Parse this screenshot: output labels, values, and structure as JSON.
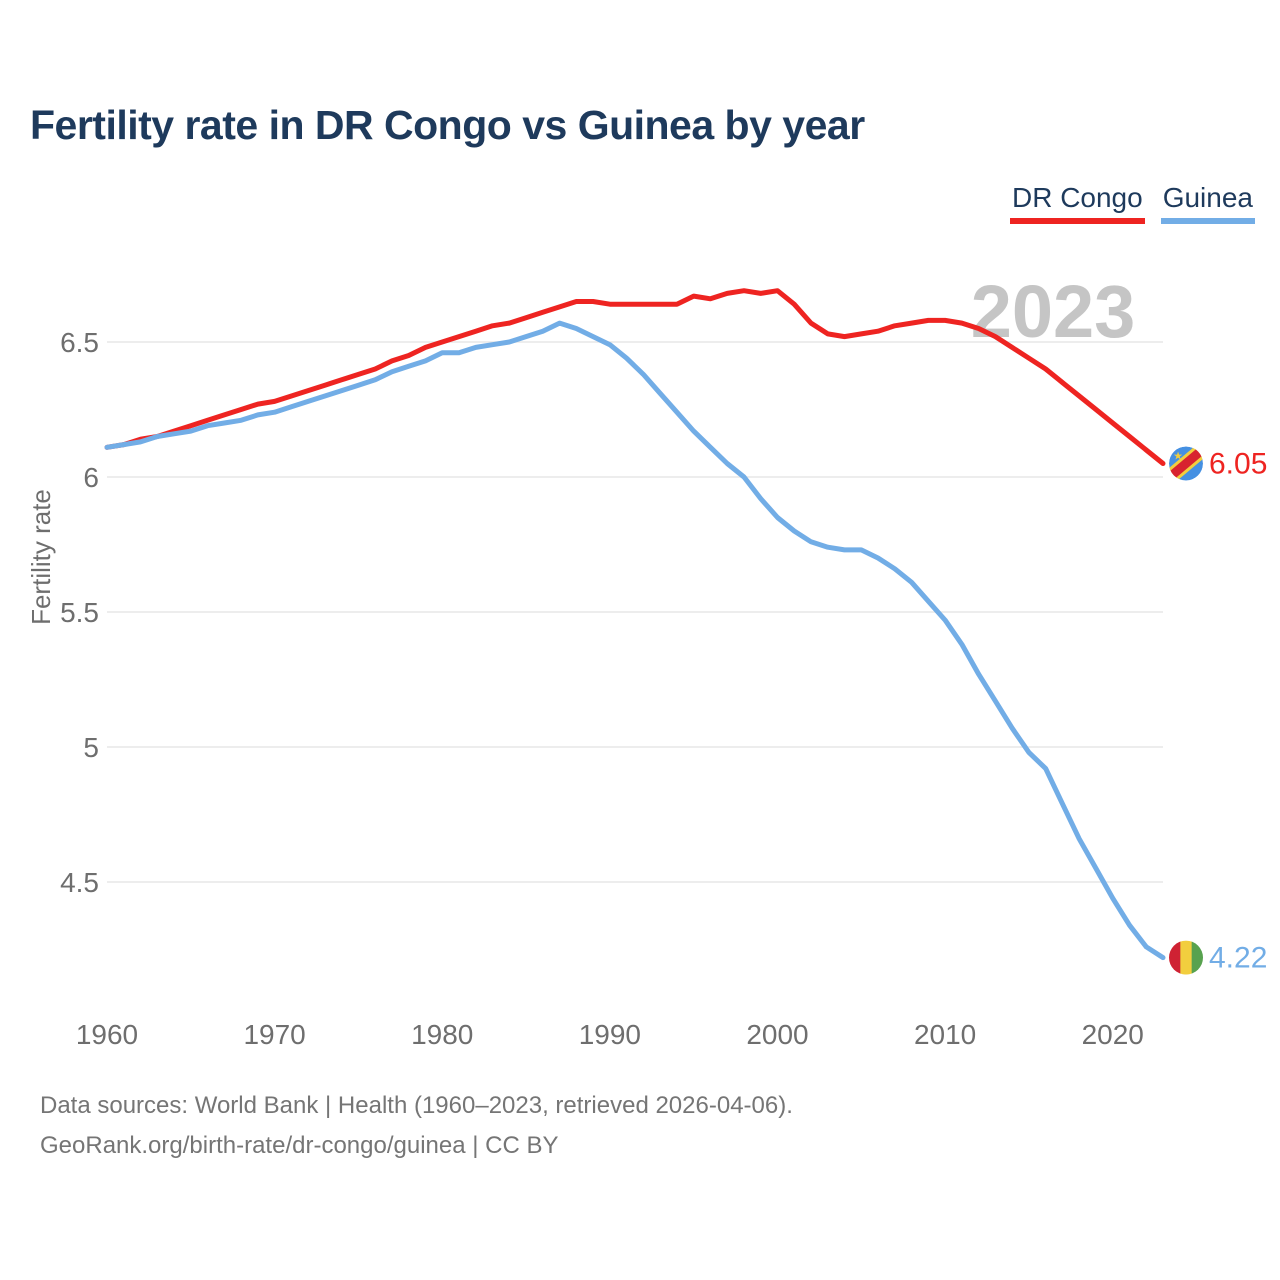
{
  "title": "Fertility rate in DR Congo vs Guinea by year",
  "legend": [
    {
      "label": "DR Congo",
      "color": "#ee2421"
    },
    {
      "label": "Guinea",
      "color": "#72ade6"
    }
  ],
  "watermark": "2023",
  "footer": {
    "line1": "Data sources: World Bank | Health (1960–2023, retrieved 2026-04-06).",
    "line2": "GeoRank.org/birth-rate/dr-congo/guinea | CC BY"
  },
  "colors": {
    "background": "#ffffff",
    "title_text": "#1e3a5c",
    "axis_text": "#6e6e6e",
    "grid": "#e7e7e7",
    "watermark": "#c5c5c5",
    "footer_text": "#757575",
    "dr_congo_line": "#ee2421",
    "guinea_line": "#72ade6"
  },
  "flags": {
    "dr_congo": {
      "blue": "#4590e2",
      "red": "#d8232f",
      "yellow": "#f2ce3e",
      "star": "★"
    },
    "guinea": {
      "red": "#cf2233",
      "yellow": "#f2ce3e",
      "green": "#58a24f"
    }
  },
  "chart_data": {
    "type": "line",
    "title": "Fertility rate in DR Congo vs Guinea by year",
    "xlabel": "",
    "ylabel": "Fertility rate",
    "xlim": [
      1960,
      2023
    ],
    "ylim": [
      4.1,
      6.8
    ],
    "x_ticks": [
      1960,
      1970,
      1980,
      1990,
      2000,
      2010,
      2020
    ],
    "y_ticks": [
      6.5,
      6,
      5.5,
      5,
      4.5
    ],
    "grid": "horizontal",
    "legend_position": "top-right",
    "x": [
      1960,
      1961,
      1962,
      1963,
      1964,
      1965,
      1966,
      1967,
      1968,
      1969,
      1970,
      1971,
      1972,
      1973,
      1974,
      1975,
      1976,
      1977,
      1978,
      1979,
      1980,
      1981,
      1982,
      1983,
      1984,
      1985,
      1986,
      1987,
      1988,
      1989,
      1990,
      1991,
      1992,
      1993,
      1994,
      1995,
      1996,
      1997,
      1998,
      1999,
      2000,
      2001,
      2002,
      2003,
      2004,
      2005,
      2006,
      2007,
      2008,
      2009,
      2010,
      2011,
      2012,
      2013,
      2014,
      2015,
      2016,
      2017,
      2018,
      2019,
      2020,
      2021,
      2022,
      2023
    ],
    "series": [
      {
        "name": "DR Congo",
        "color": "#ee2421",
        "end_label": "6.05",
        "values": [
          6.11,
          6.12,
          6.14,
          6.15,
          6.17,
          6.19,
          6.21,
          6.23,
          6.25,
          6.27,
          6.28,
          6.3,
          6.32,
          6.34,
          6.36,
          6.38,
          6.4,
          6.43,
          6.45,
          6.48,
          6.5,
          6.52,
          6.54,
          6.56,
          6.57,
          6.59,
          6.61,
          6.63,
          6.65,
          6.65,
          6.64,
          6.64,
          6.64,
          6.64,
          6.64,
          6.67,
          6.66,
          6.68,
          6.69,
          6.68,
          6.69,
          6.64,
          6.57,
          6.53,
          6.52,
          6.53,
          6.54,
          6.56,
          6.57,
          6.58,
          6.58,
          6.57,
          6.55,
          6.52,
          6.48,
          6.44,
          6.4,
          6.35,
          6.3,
          6.25,
          6.2,
          6.15,
          6.1,
          6.05
        ]
      },
      {
        "name": "Guinea",
        "color": "#72ade6",
        "end_label": "4.22",
        "values": [
          6.11,
          6.12,
          6.13,
          6.15,
          6.16,
          6.17,
          6.19,
          6.2,
          6.21,
          6.23,
          6.24,
          6.26,
          6.28,
          6.3,
          6.32,
          6.34,
          6.36,
          6.39,
          6.41,
          6.43,
          6.46,
          6.46,
          6.48,
          6.49,
          6.5,
          6.52,
          6.54,
          6.57,
          6.55,
          6.52,
          6.49,
          6.44,
          6.38,
          6.31,
          6.24,
          6.17,
          6.11,
          6.05,
          6.0,
          5.92,
          5.85,
          5.8,
          5.76,
          5.74,
          5.73,
          5.73,
          5.7,
          5.66,
          5.61,
          5.54,
          5.47,
          5.38,
          5.27,
          5.17,
          5.07,
          4.98,
          4.92,
          4.79,
          4.66,
          4.55,
          4.44,
          4.34,
          4.26,
          4.22
        ]
      }
    ]
  }
}
